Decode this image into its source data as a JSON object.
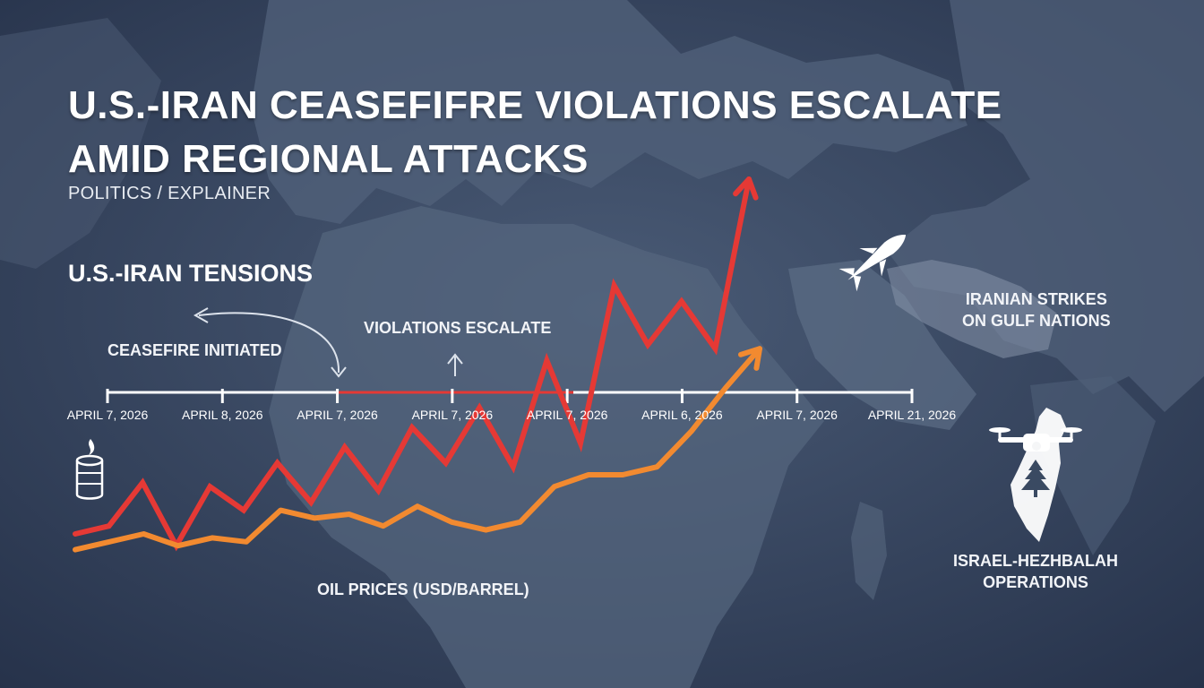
{
  "header": {
    "title_line1": "U.S.-IRAN CEASEFIFRE VIOLATIONS ESCALATE",
    "title_line2": "AMID REGIONAL ATTACKS",
    "subtitle": "POLITICS / EXPLAINER",
    "section_title": "U.S.-IRAN TENSIONS"
  },
  "annotations": {
    "ceasefire": "CEASEFIRE INITIATED",
    "violations": "VIOLATIONS ESCALATE",
    "oil_label": "OIL PRICES (USD/BARREL)",
    "iran_line1": "IRANIAN STRIKES",
    "iran_line2": "ON GULF NATIONS",
    "israel_line1": "ISRAEL-HEZHBALAH",
    "israel_line2": "OPERATIONS"
  },
  "icons": {
    "oil": "oil-barrel-fire-icon",
    "missile": "missile-icon",
    "drone": "drone-icon",
    "map": "lebanon-map-cedar-icon"
  },
  "colors": {
    "violations_line": "#e53935",
    "oil_line": "#f28a30",
    "timeline": "#ffffff",
    "background": "#3a4a62"
  },
  "chart_data": {
    "type": "line",
    "timeline_ticks": [
      "APRIL 7, 2026",
      "APRIL 8, 2026",
      "APRIL 7, 2026",
      "APRIL 7, 2026",
      "APRIL 7, 2026",
      "APRIL 6, 2026",
      "APRIL 7, 2026",
      "APRIL 21, 2026"
    ],
    "series": [
      {
        "name": "VIOLATIONS ESCALATE",
        "values": [
          10,
          12,
          23,
          7,
          22,
          16,
          28,
          18,
          32,
          21,
          37,
          28,
          42,
          27,
          54,
          33,
          73,
          58,
          69,
          57,
          100
        ]
      },
      {
        "name": "OIL PRICES (USD/BARREL)",
        "values": [
          6,
          8,
          10,
          7,
          9,
          8,
          16,
          14,
          15,
          12,
          17,
          13,
          11,
          13,
          22,
          25,
          25,
          27,
          36,
          47,
          57
        ]
      }
    ],
    "ylim": [
      0,
      100
    ],
    "legend": "inline labels",
    "grid": false
  }
}
